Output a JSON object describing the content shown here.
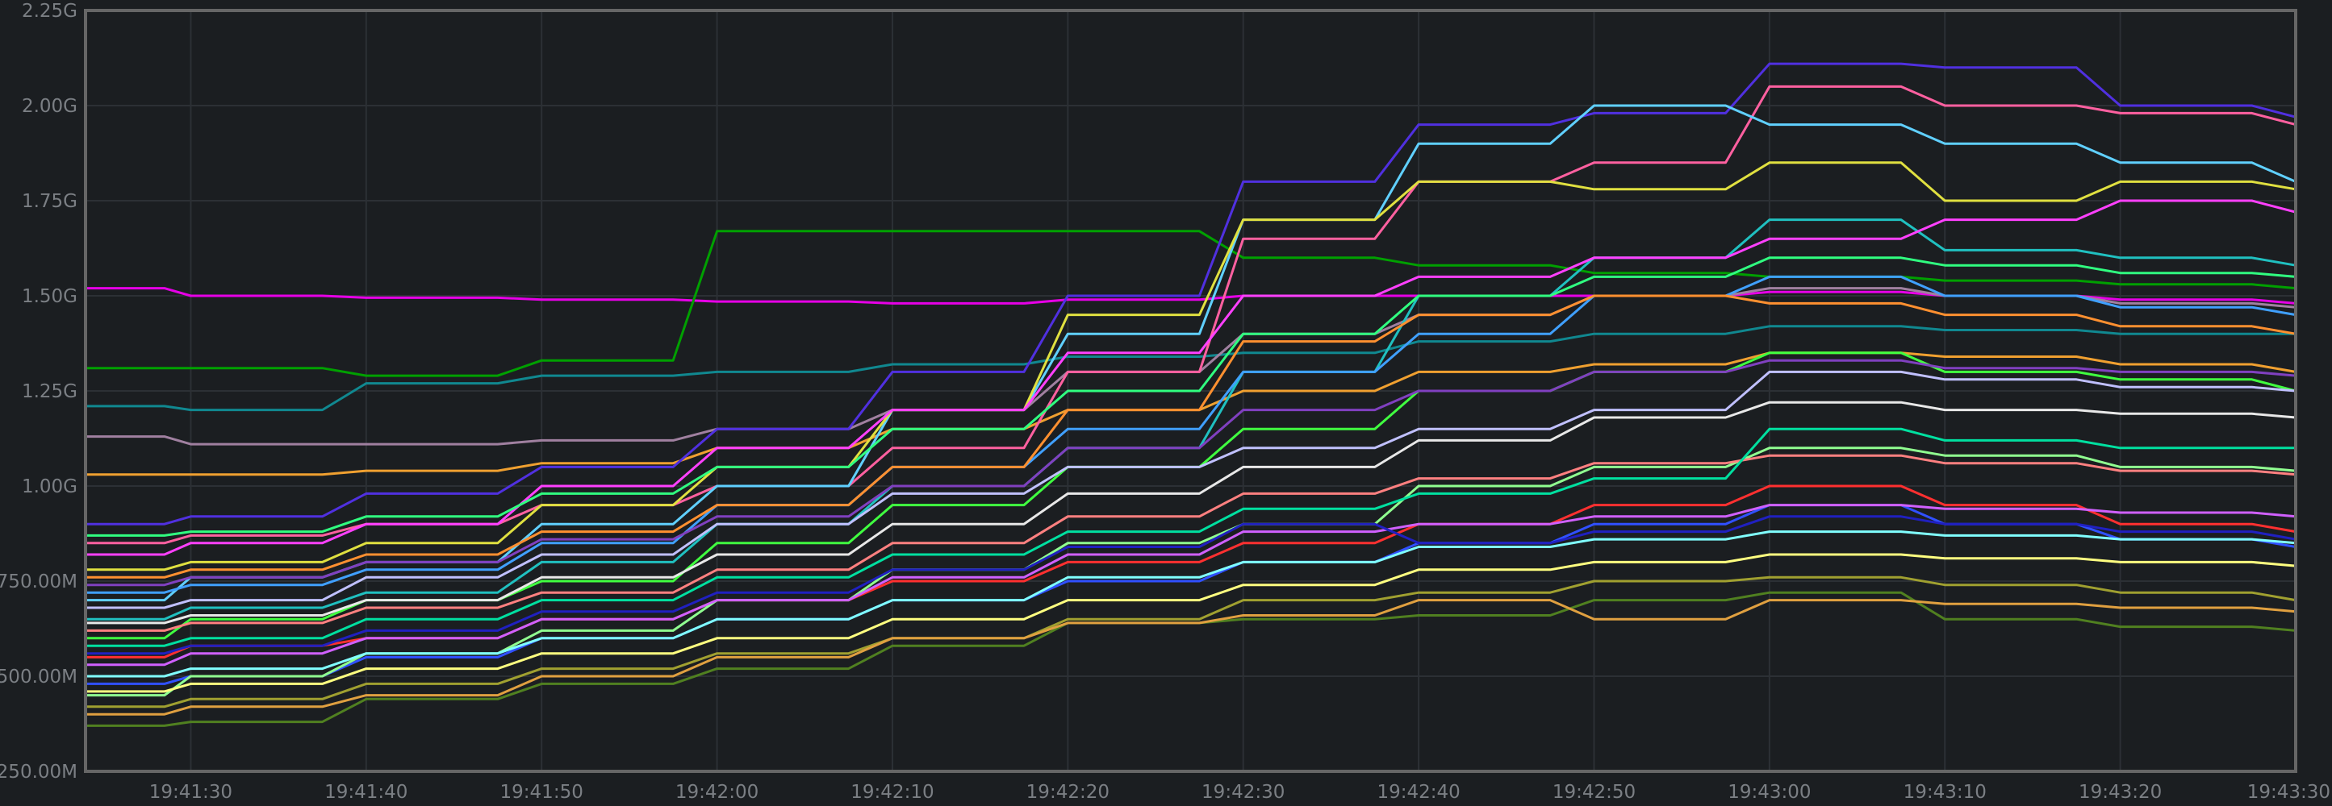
{
  "chart_data": {
    "type": "line",
    "title": "",
    "xlabel": "",
    "ylabel": "",
    "x_range": [
      "19:41:24",
      "19:43:30"
    ],
    "ylim": [
      250,
      2250
    ],
    "y_unit": "M",
    "grid": true,
    "legend": "none",
    "y_ticks": [
      {
        "value": 250,
        "label": "250.00M"
      },
      {
        "value": 500,
        "label": "500.00M"
      },
      {
        "value": 750,
        "label": "750.00M"
      },
      {
        "value": 1000,
        "label": "1.00G"
      },
      {
        "value": 1250,
        "label": "1.25G"
      },
      {
        "value": 1500,
        "label": "1.50G"
      },
      {
        "value": 1750,
        "label": "1.75G"
      },
      {
        "value": 2000,
        "label": "2.00G"
      },
      {
        "value": 2250,
        "label": "2.25G"
      }
    ],
    "x_ticks": [
      "19:41:30",
      "19:41:40",
      "19:41:50",
      "19:42:00",
      "19:42:10",
      "19:42:20",
      "19:42:30",
      "19:42:40",
      "19:42:50",
      "19:43:00",
      "19:43:10",
      "19:43:20",
      "19:43:30"
    ],
    "x": [
      "19:41:24",
      "19:41:30",
      "19:41:40",
      "19:41:50",
      "19:42:00",
      "19:42:10",
      "19:42:20",
      "19:42:30",
      "19:42:40",
      "19:42:50",
      "19:43:00",
      "19:43:10",
      "19:43:20",
      "19:43:30"
    ],
    "series": [
      {
        "color": "#e600e6",
        "values": [
          1520,
          1500,
          1495,
          1490,
          1485,
          1480,
          1490,
          1500,
          1500,
          1500,
          1510,
          1500,
          1490,
          1480
        ]
      },
      {
        "color": "#00a000",
        "values": [
          1310,
          1310,
          1290,
          1330,
          1670,
          1670,
          1670,
          1600,
          1580,
          1560,
          1550,
          1540,
          1530,
          1520
        ]
      },
      {
        "color": "#108890",
        "values": [
          1210,
          1200,
          1270,
          1290,
          1300,
          1320,
          1340,
          1350,
          1380,
          1400,
          1420,
          1410,
          1400,
          1400
        ]
      },
      {
        "color": "#a080a0",
        "values": [
          1130,
          1110,
          1110,
          1120,
          1150,
          1200,
          1300,
          1400,
          1450,
          1500,
          1520,
          1500,
          1480,
          1470
        ]
      },
      {
        "color": "#f0a030",
        "values": [
          1030,
          1030,
          1040,
          1060,
          1100,
          1150,
          1200,
          1250,
          1300,
          1320,
          1350,
          1340,
          1320,
          1300
        ]
      },
      {
        "color": "#5030e0",
        "values": [
          900,
          920,
          980,
          1050,
          1150,
          1300,
          1500,
          1800,
          1950,
          1980,
          2110,
          2100,
          2000,
          1970
        ]
      },
      {
        "color": "#ff60a0",
        "values": [
          850,
          870,
          900,
          950,
          1000,
          1100,
          1300,
          1650,
          1800,
          1850,
          2050,
          2000,
          1980,
          1950
        ]
      },
      {
        "color": "#60d0ff",
        "values": [
          700,
          760,
          800,
          900,
          1000,
          1200,
          1400,
          1700,
          1900,
          2000,
          1950,
          1900,
          1850,
          1800
        ]
      },
      {
        "color": "#e0e040",
        "values": [
          780,
          800,
          850,
          950,
          1050,
          1200,
          1450,
          1700,
          1800,
          1780,
          1850,
          1750,
          1800,
          1780
        ]
      },
      {
        "color": "#20c0c0",
        "values": [
          650,
          680,
          720,
          800,
          900,
          1000,
          1100,
          1300,
          1500,
          1600,
          1700,
          1620,
          1600,
          1580
        ]
      },
      {
        "color": "#40ff40",
        "values": [
          600,
          650,
          700,
          750,
          850,
          950,
          1050,
          1150,
          1250,
          1300,
          1350,
          1300,
          1280,
          1250
        ]
      },
      {
        "color": "#ff3030",
        "values": [
          550,
          580,
          600,
          650,
          700,
          750,
          800,
          850,
          900,
          950,
          1000,
          950,
          900,
          880
        ]
      },
      {
        "color": "#3050ff",
        "values": [
          480,
          500,
          550,
          600,
          650,
          700,
          750,
          800,
          850,
          900,
          950,
          900,
          860,
          840
        ]
      },
      {
        "color": "#90ff90",
        "values": [
          450,
          500,
          560,
          620,
          700,
          780,
          850,
          900,
          1000,
          1050,
          1100,
          1080,
          1050,
          1040
        ]
      },
      {
        "color": "#a0a030",
        "values": [
          420,
          440,
          480,
          520,
          560,
          600,
          650,
          700,
          720,
          750,
          760,
          740,
          720,
          700
        ]
      },
      {
        "color": "#508020",
        "values": [
          370,
          380,
          440,
          480,
          520,
          580,
          640,
          650,
          660,
          700,
          720,
          650,
          630,
          620
        ]
      },
      {
        "color": "#e0a040",
        "values": [
          400,
          420,
          450,
          500,
          550,
          600,
          640,
          660,
          700,
          650,
          700,
          690,
          680,
          670
        ]
      },
      {
        "color": "#ff40ff",
        "values": [
          820,
          850,
          900,
          1000,
          1100,
          1200,
          1350,
          1500,
          1550,
          1600,
          1650,
          1700,
          1750,
          1720
        ]
      },
      {
        "color": "#40a0ff",
        "values": [
          720,
          740,
          780,
          850,
          950,
          1050,
          1150,
          1300,
          1400,
          1500,
          1550,
          1500,
          1470,
          1450
        ]
      },
      {
        "color": "#c0c0ff",
        "values": [
          680,
          700,
          760,
          820,
          900,
          980,
          1050,
          1100,
          1150,
          1200,
          1300,
          1280,
          1260,
          1250
        ]
      },
      {
        "color": "#ff8080",
        "values": [
          620,
          640,
          680,
          720,
          780,
          850,
          920,
          980,
          1020,
          1060,
          1080,
          1060,
          1040,
          1030
        ]
      },
      {
        "color": "#00e0a0",
        "values": [
          580,
          600,
          650,
          700,
          760,
          820,
          880,
          940,
          980,
          1020,
          1150,
          1120,
          1100,
          1100
        ]
      },
      {
        "color": "#d060ff",
        "values": [
          530,
          560,
          600,
          650,
          700,
          760,
          820,
          880,
          900,
          920,
          950,
          940,
          930,
          920
        ]
      },
      {
        "color": "#80ffff",
        "values": [
          500,
          520,
          560,
          600,
          650,
          700,
          760,
          800,
          840,
          860,
          880,
          870,
          860,
          850
        ]
      },
      {
        "color": "#ffff80",
        "values": [
          460,
          480,
          520,
          560,
          600,
          650,
          700,
          740,
          780,
          800,
          820,
          810,
          800,
          790
        ]
      },
      {
        "color": "#ff9030",
        "values": [
          760,
          780,
          820,
          880,
          950,
          1050,
          1200,
          1380,
          1450,
          1500,
          1480,
          1450,
          1420,
          1400
        ]
      },
      {
        "color": "#8040c0",
        "values": [
          740,
          760,
          800,
          860,
          920,
          1000,
          1100,
          1200,
          1250,
          1300,
          1330,
          1310,
          1300,
          1290
        ]
      },
      {
        "color": "#30ff80",
        "values": [
          870,
          880,
          920,
          980,
          1050,
          1150,
          1250,
          1400,
          1500,
          1550,
          1600,
          1580,
          1560,
          1550
        ]
      },
      {
        "color": "#e8e8e8",
        "values": [
          640,
          660,
          700,
          760,
          820,
          900,
          980,
          1050,
          1120,
          1180,
          1220,
          1200,
          1190,
          1180
        ]
      },
      {
        "color": "#2020c0",
        "values": [
          560,
          580,
          620,
          670,
          720,
          780,
          840,
          900,
          850,
          880,
          920,
          900,
          880,
          860
        ]
      }
    ]
  }
}
